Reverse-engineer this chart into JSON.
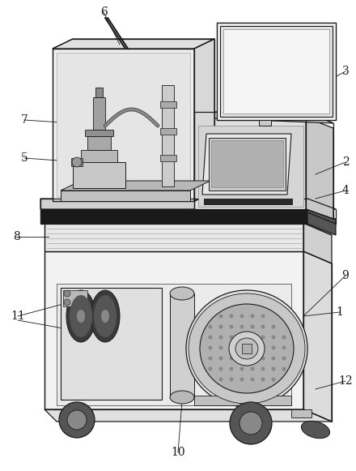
{
  "bg": "#ffffff",
  "lc": "#1a1a1a",
  "fw": 4.4,
  "fh": 5.81,
  "dpi": 100,
  "gray_light": "#e8e8e8",
  "gray_mid": "#cccccc",
  "gray_dark": "#888888",
  "black": "#1a1a1a"
}
